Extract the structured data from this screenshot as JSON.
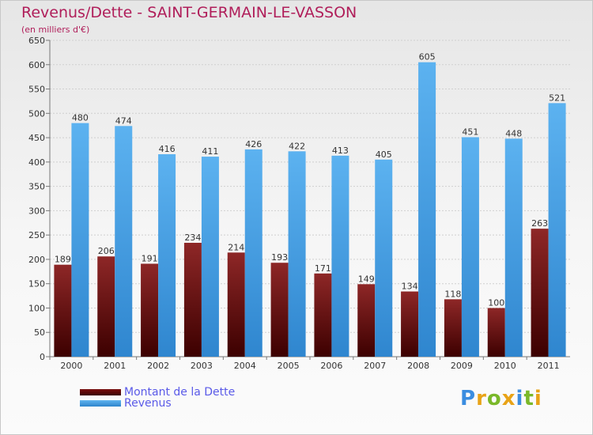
{
  "header": {
    "title": "Revenus/Dette - SAINT-GERMAIN-LE-VASSON",
    "subtitle": "(en milliers d'€)"
  },
  "legend": [
    {
      "label": "Montant de la Dette",
      "color": "#7a1010"
    },
    {
      "label": "Revenus",
      "color": "#4aa3e8"
    }
  ],
  "logo": {
    "text": "Proxiti",
    "letter_colors": [
      "#3b8de0",
      "#e8a317",
      "#7ab829",
      "#e8a317",
      "#3b8de0",
      "#7ab829",
      "#e8a317"
    ]
  },
  "chart_data": {
    "type": "bar",
    "title": "Revenus/Dette - SAINT-GERMAIN-LE-VASSON",
    "subtitle": "(en milliers d'€)",
    "categories": [
      "2000",
      "2001",
      "2002",
      "2003",
      "2004",
      "2005",
      "2006",
      "2007",
      "2008",
      "2009",
      "2010",
      "2011"
    ],
    "series": [
      {
        "name": "Montant de la Dette",
        "color": "#7a1010",
        "values": [
          189,
          206,
          191,
          234,
          214,
          193,
          171,
          149,
          134,
          118,
          100,
          263
        ]
      },
      {
        "name": "Revenus",
        "color": "#4aa3e8",
        "values": [
          480,
          474,
          416,
          411,
          426,
          422,
          413,
          405,
          605,
          451,
          448,
          521
        ]
      }
    ],
    "ylim": [
      0,
      650
    ],
    "yticks": [
      0,
      50,
      100,
      150,
      200,
      250,
      300,
      350,
      400,
      450,
      500,
      550,
      600,
      650
    ],
    "grid": true,
    "legend_position": "bottom-left"
  }
}
